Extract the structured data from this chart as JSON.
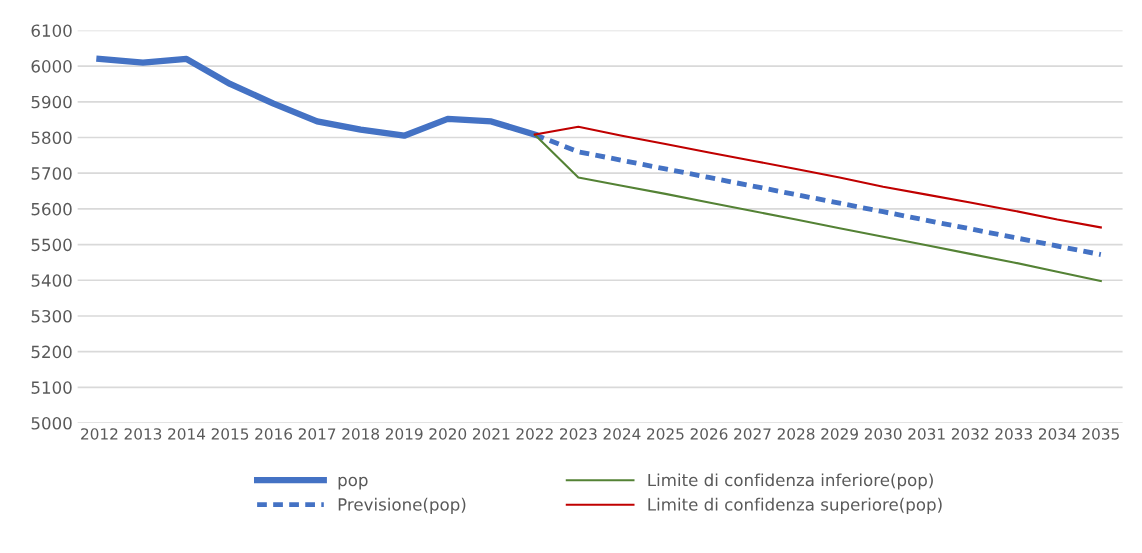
{
  "chart_data": {
    "type": "line",
    "categories": [
      "2012",
      "2013",
      "2014",
      "2015",
      "2016",
      "2017",
      "2018",
      "2019",
      "2020",
      "2021",
      "2022",
      "2023",
      "2024",
      "2025",
      "2026",
      "2027",
      "2028",
      "2029",
      "2030",
      "2031",
      "2032",
      "2033",
      "2034",
      "2035"
    ],
    "series": [
      {
        "name": "pop",
        "color": "#4472c4",
        "line_style": "solid",
        "values": [
          6020,
          6010,
          6020,
          5950,
          5895,
          5845,
          5822,
          5805,
          5852,
          5845,
          5808,
          null,
          null,
          null,
          null,
          null,
          null,
          null,
          null,
          null,
          null,
          null,
          null,
          null
        ]
      },
      {
        "name": "Previsione(pop)",
        "color": "#4472c4",
        "line_style": "dashed",
        "values": [
          null,
          null,
          null,
          null,
          null,
          null,
          null,
          null,
          null,
          null,
          5808,
          5760,
          5736,
          5712,
          5688,
          5664,
          5640,
          5616,
          5592,
          5568,
          5544,
          5520,
          5496,
          5472
        ]
      },
      {
        "name": "Limite di confidenza inferiore(pop)",
        "color": "#548235",
        "line_style": "solid",
        "values": [
          null,
          null,
          null,
          null,
          null,
          null,
          null,
          null,
          null,
          null,
          5808,
          5688,
          5665,
          5642,
          5618,
          5594,
          5570,
          5546,
          5522,
          5498,
          5474,
          5450,
          5424,
          5398
        ]
      },
      {
        "name": "Limite di confidenza superiore(pop)",
        "color": "#c00000",
        "line_style": "solid",
        "values": [
          null,
          null,
          null,
          null,
          null,
          null,
          null,
          null,
          null,
          null,
          5808,
          5830,
          5805,
          5782,
          5758,
          5735,
          5712,
          5688,
          5662,
          5640,
          5618,
          5595,
          5570,
          5548
        ]
      }
    ],
    "ylim": [
      5000,
      6100
    ],
    "yticks": [
      5000,
      5100,
      5200,
      5300,
      5400,
      5500,
      5600,
      5700,
      5800,
      5900,
      6000,
      6100
    ],
    "grid": "y",
    "legend": "bottom",
    "marker": "none"
  }
}
